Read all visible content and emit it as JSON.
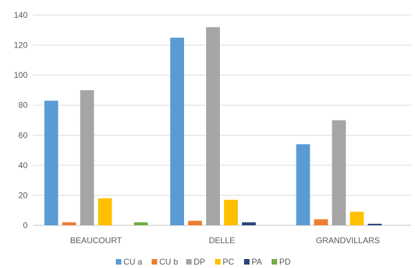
{
  "chart_data": {
    "type": "bar",
    "categories": [
      "BEAUCOURT",
      "DELLE",
      "GRANDVILLARS"
    ],
    "series": [
      {
        "name": "CU a",
        "color": "#5b9bd5",
        "values": [
          83,
          125,
          54
        ]
      },
      {
        "name": "CU b",
        "color": "#ed7d31",
        "values": [
          2,
          3,
          4
        ]
      },
      {
        "name": "DP",
        "color": "#a5a5a5",
        "values": [
          90,
          132,
          70
        ]
      },
      {
        "name": "PC",
        "color": "#ffc000",
        "values": [
          18,
          17,
          9
        ]
      },
      {
        "name": "PA",
        "color": "#264478",
        "values": [
          0,
          2,
          1
        ]
      },
      {
        "name": "PD",
        "color": "#70ad47",
        "values": [
          2,
          0,
          0
        ]
      }
    ],
    "ylim": [
      0,
      140
    ],
    "yticks": [
      "0",
      "20",
      "40",
      "60",
      "80",
      "100",
      "120",
      "140"
    ],
    "grid": true,
    "legend_position": "bottom"
  }
}
